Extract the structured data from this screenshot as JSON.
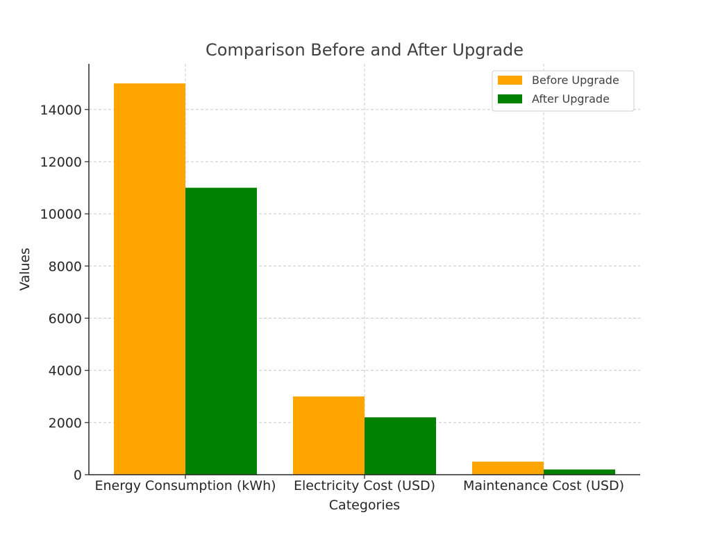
{
  "chart_data": {
    "type": "bar",
    "title": "Comparison Before and After Upgrade",
    "xlabel": "Categories",
    "ylabel": "Values",
    "categories": [
      "Energy Consumption (kWh)",
      "Electricity Cost (USD)",
      "Maintenance Cost (USD)"
    ],
    "series": [
      {
        "name": "Before Upgrade",
        "color": "#ffa500",
        "values": [
          15000,
          3000,
          500
        ]
      },
      {
        "name": "After Upgrade",
        "color": "#008000",
        "values": [
          11000,
          2200,
          200
        ]
      }
    ],
    "ylim": [
      0,
      15750
    ],
    "yticks": [
      0,
      2000,
      4000,
      6000,
      8000,
      10000,
      12000,
      14000
    ],
    "grid": true,
    "legend_position": "top-right"
  }
}
